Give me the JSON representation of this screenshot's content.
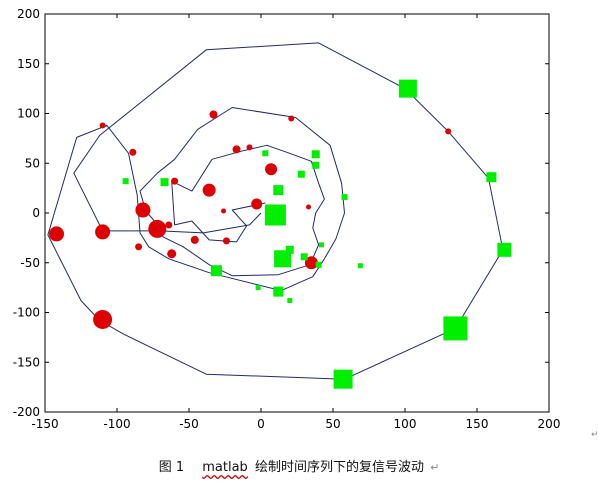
{
  "caption": {
    "figure_label": "图 1",
    "name": "matlab",
    "text": "绘制时间序列下的复信号波动",
    "mark": "↵"
  },
  "side_mark": "↵",
  "chart_data": {
    "type": "line",
    "title": "",
    "xlabel": "",
    "ylabel": "",
    "xlim": [
      -150,
      200
    ],
    "ylim": [
      -200,
      200
    ],
    "xticks": [
      -150,
      -100,
      -50,
      0,
      50,
      100,
      150,
      200
    ],
    "yticks": [
      -200,
      -150,
      -100,
      -50,
      0,
      50,
      100,
      150,
      200
    ],
    "grid": false,
    "colors": {
      "line": "#1f2a6b",
      "marker_red": "#dd0000",
      "marker_green": "#00ee00",
      "axis": "#000000"
    },
    "trajectory": [
      [
        3,
        10
      ],
      [
        -20,
        3
      ],
      [
        -10,
        -13
      ],
      [
        -17,
        -29
      ],
      [
        -36,
        -27
      ],
      [
        -48,
        -8
      ],
      [
        -60,
        -12
      ],
      [
        -62,
        32
      ],
      [
        -48,
        22
      ],
      [
        -34,
        54
      ],
      [
        -14,
        62
      ],
      [
        4,
        68
      ],
      [
        18,
        61
      ],
      [
        35,
        52
      ],
      [
        40,
        30
      ],
      [
        44,
        14
      ],
      [
        38,
        0
      ],
      [
        36,
        -15
      ],
      [
        40,
        -32
      ],
      [
        34,
        -52
      ],
      [
        12,
        -62
      ],
      [
        -20,
        -63
      ],
      [
        -36,
        -52
      ],
      [
        -54,
        -34
      ],
      [
        -68,
        -24
      ],
      [
        -74,
        -8
      ],
      [
        -80,
        2
      ],
      [
        -84,
        22
      ],
      [
        -72,
        40
      ],
      [
        -60,
        54
      ],
      [
        -44,
        84
      ],
      [
        -20,
        106
      ],
      [
        24,
        96
      ],
      [
        48,
        68
      ],
      [
        56,
        30
      ],
      [
        58,
        0
      ],
      [
        52,
        -26
      ],
      [
        44,
        -46
      ],
      [
        36,
        -64
      ],
      [
        14,
        -78
      ],
      [
        -36,
        -60
      ],
      [
        -64,
        -46
      ],
      [
        -78,
        -34
      ],
      [
        -84,
        -20
      ],
      [
        -86,
        18
      ],
      [
        -92,
        60
      ],
      [
        -107,
        88
      ],
      [
        -128,
        76
      ],
      [
        -148,
        -22
      ],
      [
        -125,
        -88
      ],
      [
        -112,
        -108
      ],
      [
        -95,
        -122
      ],
      [
        -38,
        -162
      ],
      [
        58,
        -167
      ],
      [
        135,
        -116
      ],
      [
        168,
        -37
      ],
      [
        158,
        35
      ],
      [
        130,
        82
      ],
      [
        100,
        125
      ],
      [
        40,
        171
      ],
      [
        -38,
        164
      ],
      [
        -112,
        78
      ],
      [
        -130,
        40
      ],
      [
        -110,
        -18
      ],
      [
        -70,
        -18
      ],
      [
        -40,
        -20
      ],
      [
        -8,
        -12
      ],
      [
        0,
        0
      ]
    ],
    "markers": [
      {
        "x": -142,
        "y": -21,
        "r": 7.5,
        "color": "red"
      },
      {
        "x": -110,
        "y": -107,
        "r": 9.5,
        "color": "red"
      },
      {
        "x": -110,
        "y": -19,
        "r": 7.5,
        "color": "red"
      },
      {
        "x": -82,
        "y": 3,
        "r": 7.5,
        "color": "red"
      },
      {
        "x": -72,
        "y": -16,
        "r": 9,
        "color": "red"
      },
      {
        "x": -36,
        "y": 23,
        "r": 6.5,
        "color": "red"
      },
      {
        "x": 7,
        "y": 44,
        "r": 6,
        "color": "red"
      },
      {
        "x": -3,
        "y": 9,
        "r": 5.5,
        "color": "red"
      },
      {
        "x": -62,
        "y": -41,
        "r": 4.5,
        "color": "red"
      },
      {
        "x": -46,
        "y": -27,
        "r": 4,
        "color": "red"
      },
      {
        "x": -85,
        "y": -34,
        "r": 3.5,
        "color": "red"
      },
      {
        "x": -24,
        "y": -28,
        "r": 3.5,
        "color": "red"
      },
      {
        "x": -64,
        "y": -12,
        "r": 3.5,
        "color": "red"
      },
      {
        "x": -60,
        "y": 32,
        "r": 3.5,
        "color": "red"
      },
      {
        "x": -89,
        "y": 61,
        "r": 3.5,
        "color": "red"
      },
      {
        "x": -110,
        "y": 88,
        "r": 3,
        "color": "red"
      },
      {
        "x": -33,
        "y": 99,
        "r": 4,
        "color": "red"
      },
      {
        "x": -17,
        "y": 64,
        "r": 4,
        "color": "red"
      },
      {
        "x": -8,
        "y": 66,
        "r": 3,
        "color": "red"
      },
      {
        "x": 21,
        "y": 95,
        "r": 3,
        "color": "red"
      },
      {
        "x": 130,
        "y": 82,
        "r": 3,
        "color": "red"
      },
      {
        "x": -26,
        "y": 2,
        "r": 2.5,
        "color": "red"
      },
      {
        "x": 35,
        "y": -50,
        "r": 6.5,
        "color": "red"
      },
      {
        "x": 33,
        "y": 6,
        "r": 2.5,
        "color": "red"
      },
      {
        "x": 10,
        "y": -2,
        "s": 21,
        "color": "green"
      },
      {
        "x": 57,
        "y": -167,
        "s": 19,
        "color": "green"
      },
      {
        "x": 135,
        "y": -116,
        "s": 24,
        "color": "green"
      },
      {
        "x": 102,
        "y": 125,
        "s": 18,
        "color": "green"
      },
      {
        "x": 169,
        "y": -37,
        "s": 14,
        "color": "green"
      },
      {
        "x": 160,
        "y": 36,
        "s": 10,
        "color": "green"
      },
      {
        "x": 15,
        "y": -46,
        "s": 17,
        "color": "green"
      },
      {
        "x": -31,
        "y": -58,
        "s": 11,
        "color": "green"
      },
      {
        "x": 12,
        "y": 23,
        "s": 10,
        "color": "green"
      },
      {
        "x": 28,
        "y": 39,
        "s": 7,
        "color": "green"
      },
      {
        "x": 38,
        "y": 59,
        "s": 8,
        "color": "green"
      },
      {
        "x": 12,
        "y": -79,
        "s": 10,
        "color": "green"
      },
      {
        "x": 38,
        "y": 48,
        "s": 7,
        "color": "green"
      },
      {
        "x": 20,
        "y": -37,
        "s": 8,
        "color": "green"
      },
      {
        "x": 30,
        "y": -44,
        "s": 7,
        "color": "green"
      },
      {
        "x": -67,
        "y": 31,
        "s": 8,
        "color": "green"
      },
      {
        "x": -94,
        "y": 32,
        "s": 6,
        "color": "green"
      },
      {
        "x": 3,
        "y": 60,
        "s": 6,
        "color": "green"
      },
      {
        "x": 58,
        "y": 16,
        "s": 6,
        "color": "green"
      },
      {
        "x": 40,
        "y": -52,
        "s": 6,
        "color": "green"
      },
      {
        "x": 69,
        "y": -53,
        "s": 5,
        "color": "green"
      },
      {
        "x": -2,
        "y": -75,
        "s": 5,
        "color": "green"
      },
      {
        "x": 20,
        "y": -88,
        "s": 5,
        "color": "green"
      },
      {
        "x": 42,
        "y": -32,
        "s": 5,
        "color": "green"
      }
    ]
  }
}
